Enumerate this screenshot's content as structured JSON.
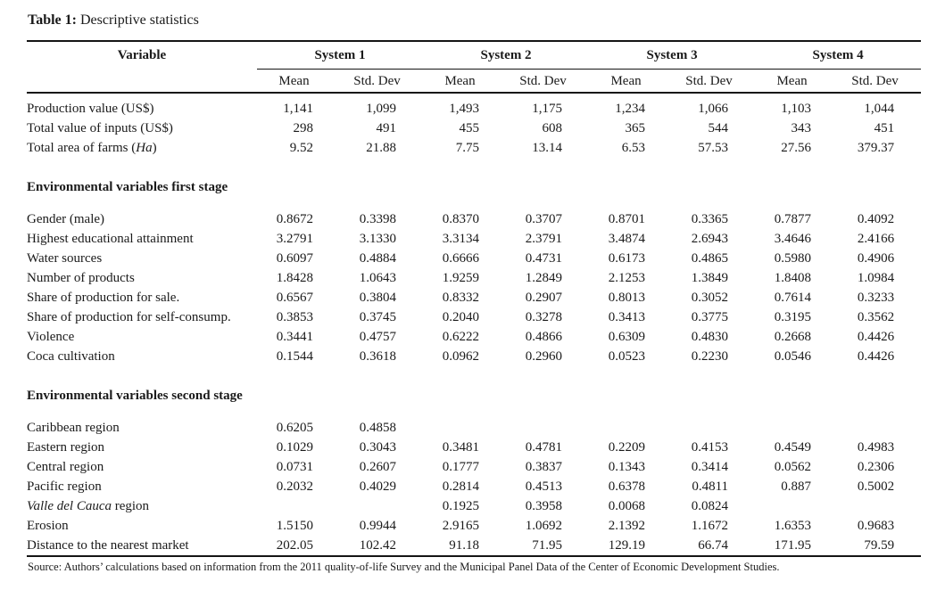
{
  "title": {
    "prefix": "Table 1:",
    "rest": " Descriptive statistics"
  },
  "colors": {
    "text": "#1a1a1a",
    "rule": "#151515",
    "background": "#ffffff"
  },
  "table": {
    "variable_header": "Variable",
    "group_headers": [
      "System 1",
      "System 2",
      "System 3",
      "System 4"
    ],
    "sub_headers": [
      "Mean",
      "Std. Dev"
    ],
    "sections": [
      {
        "heading": null,
        "rows": [
          {
            "label": "Production value (US$)",
            "values": [
              "1,141",
              "1,099",
              "1,493",
              "1,175",
              "1,234",
              "1,066",
              "1,103",
              "1,044"
            ]
          },
          {
            "label": "Total value of inputs (US$)",
            "values": [
              "298",
              "491",
              "455",
              "608",
              "365",
              "544",
              "343",
              "451"
            ]
          },
          {
            "label": "Total area of farms (Ha)",
            "italic": "Ha",
            "values": [
              "9.52",
              "21.88",
              "7.75",
              "13.14",
              "6.53",
              "57.53",
              "27.56",
              "379.37"
            ]
          }
        ]
      },
      {
        "heading": "Environmental variables first stage",
        "rows": [
          {
            "label": "Gender (male)",
            "values": [
              "0.8672",
              "0.3398",
              "0.8370",
              "0.3707",
              "0.8701",
              "0.3365",
              "0.7877",
              "0.4092"
            ]
          },
          {
            "label": "Highest educational attainment",
            "values": [
              "3.2791",
              "3.1330",
              "3.3134",
              "2.3791",
              "3.4874",
              "2.6943",
              "3.4646",
              "2.4166"
            ]
          },
          {
            "label": "Water sources",
            "values": [
              "0.6097",
              "0.4884",
              "0.6666",
              "0.4731",
              "0.6173",
              "0.4865",
              "0.5980",
              "0.4906"
            ]
          },
          {
            "label": "Number of products",
            "values": [
              "1.8428",
              "1.0643",
              "1.9259",
              "1.2849",
              "2.1253",
              "1.3849",
              "1.8408",
              "1.0984"
            ]
          },
          {
            "label": "Share of production for sale.",
            "values": [
              "0.6567",
              "0.3804",
              "0.8332",
              "0.2907",
              "0.8013",
              "0.3052",
              "0.7614",
              "0.3233"
            ]
          },
          {
            "label": "Share of production for self-consump.",
            "values": [
              "0.3853",
              "0.3745",
              "0.2040",
              "0.3278",
              "0.3413",
              "0.3775",
              "0.3195",
              "0.3562"
            ]
          },
          {
            "label": "Violence",
            "values": [
              "0.3441",
              "0.4757",
              "0.6222",
              "0.4866",
              "0.6309",
              "0.4830",
              "0.2668",
              "0.4426"
            ]
          },
          {
            "label": "Coca cultivation",
            "values": [
              "0.1544",
              "0.3618",
              "0.0962",
              "0.2960",
              "0.0523",
              "0.2230",
              "0.0546",
              "0.4426"
            ]
          }
        ]
      },
      {
        "heading": "Environmental variables second stage",
        "rows": [
          {
            "label": "Caribbean region",
            "values": [
              "0.6205",
              "0.4858",
              "",
              "",
              "",
              "",
              "",
              ""
            ]
          },
          {
            "label": "Eastern region",
            "values": [
              "0.1029",
              "0.3043",
              "0.3481",
              "0.4781",
              "0.2209",
              "0.4153",
              "0.4549",
              "0.4983"
            ]
          },
          {
            "label": "Central region",
            "values": [
              "0.0731",
              "0.2607",
              "0.1777",
              "0.3837",
              "0.1343",
              "0.3414",
              "0.0562",
              "0.2306"
            ]
          },
          {
            "label": "Pacific region",
            "values": [
              "0.2032",
              "0.4029",
              "0.2814",
              "0.4513",
              "0.6378",
              "0.4811",
              "0.887",
              "0.5002"
            ]
          },
          {
            "label": "Valle del Cauca region",
            "italic": "Valle del Cauca",
            "values": [
              "",
              "",
              "0.1925",
              "0.3958",
              "0.0068",
              "0.0824",
              "",
              ""
            ]
          },
          {
            "label": "Erosion",
            "values": [
              "1.5150",
              "0.9944",
              "2.9165",
              "1.0692",
              "2.1392",
              "1.1672",
              "1.6353",
              "0.9683"
            ]
          },
          {
            "label": "Distance to the nearest market",
            "values": [
              "202.05",
              "102.42",
              "91.18",
              "71.95",
              "129.19",
              "66.74",
              "171.95",
              "79.59"
            ]
          }
        ]
      }
    ]
  },
  "source_note": "Source: Authors’ calculations based on information from the 2011 quality-of-life Survey and the Municipal Panel Data of the Center of Economic Development Studies."
}
